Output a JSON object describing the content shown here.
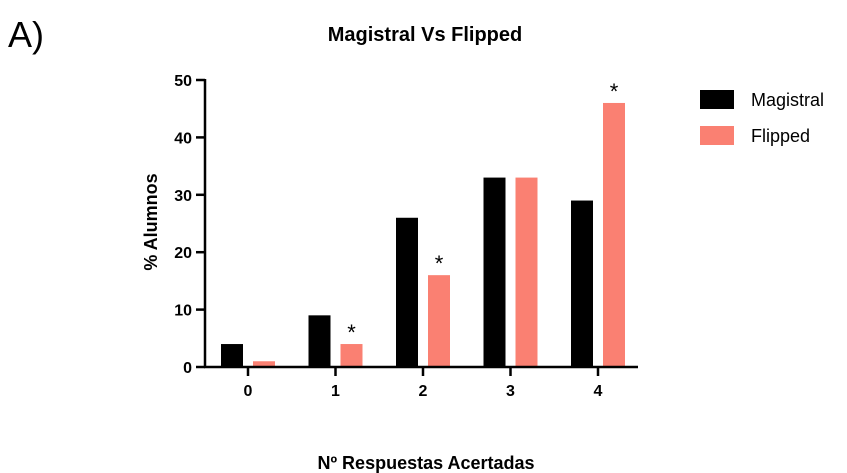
{
  "panel_label": "A)",
  "chart_data": {
    "type": "bar",
    "title": "Magistral Vs Flipped",
    "xlabel": "Nº Respuestas Acertadas",
    "ylabel": "% Alumnos",
    "categories": [
      "0",
      "1",
      "2",
      "3",
      "4"
    ],
    "ylim": [
      0,
      50
    ],
    "yticks": [
      0,
      10,
      20,
      30,
      40,
      50
    ],
    "grid": false,
    "legend_position": "top-right",
    "series": [
      {
        "name": "Magistral",
        "color": "#000000",
        "values": [
          4,
          9,
          26,
          33,
          29
        ]
      },
      {
        "name": "Flipped",
        "color": "#fa8072",
        "values": [
          1,
          4,
          16,
          33,
          46
        ]
      }
    ],
    "annotations": [
      {
        "text": "*",
        "series": 1,
        "category": 1
      },
      {
        "text": "*",
        "series": 1,
        "category": 2
      },
      {
        "text": "*",
        "series": 1,
        "category": 4
      }
    ]
  }
}
